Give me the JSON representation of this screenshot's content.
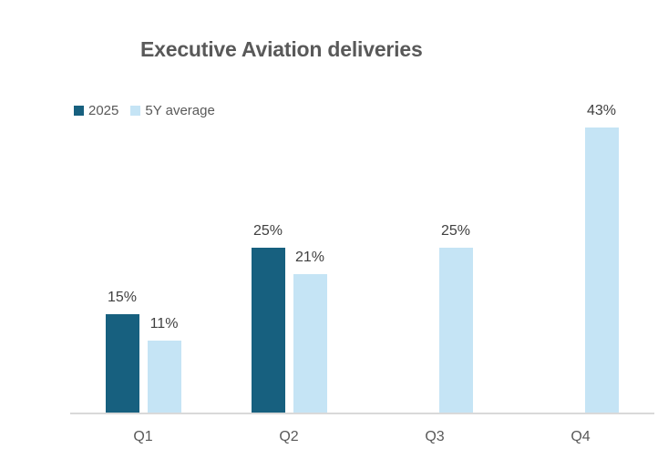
{
  "title": "Executive Aviation deliveries",
  "colors": {
    "series_2025": "#17607F",
    "series_5y_average": "#C5E4F5",
    "title_text": "#595959",
    "axis_text": "#595959",
    "data_label_text": "#404040",
    "axis_line": "#D9D9D9",
    "background": "#FFFFFF"
  },
  "chart_data": {
    "type": "bar",
    "title": "Executive Aviation deliveries",
    "categories": [
      "Q1",
      "Q2",
      "Q3",
      "Q4"
    ],
    "series": [
      {
        "name": "2025",
        "color": "#17607F",
        "values": [
          15,
          25,
          null,
          null
        ]
      },
      {
        "name": "5Y average",
        "color": "#C5E4F5",
        "values": [
          11,
          21,
          25,
          43
        ]
      }
    ],
    "data_labels": [
      "15%",
      "11%",
      "25%",
      "21%",
      "25%",
      "43%"
    ],
    "unit": "%",
    "xlabel": "",
    "ylabel": "",
    "ylim": [
      0,
      47
    ],
    "grid": false,
    "y_axis_visible": false,
    "legend_position": "top-left"
  }
}
